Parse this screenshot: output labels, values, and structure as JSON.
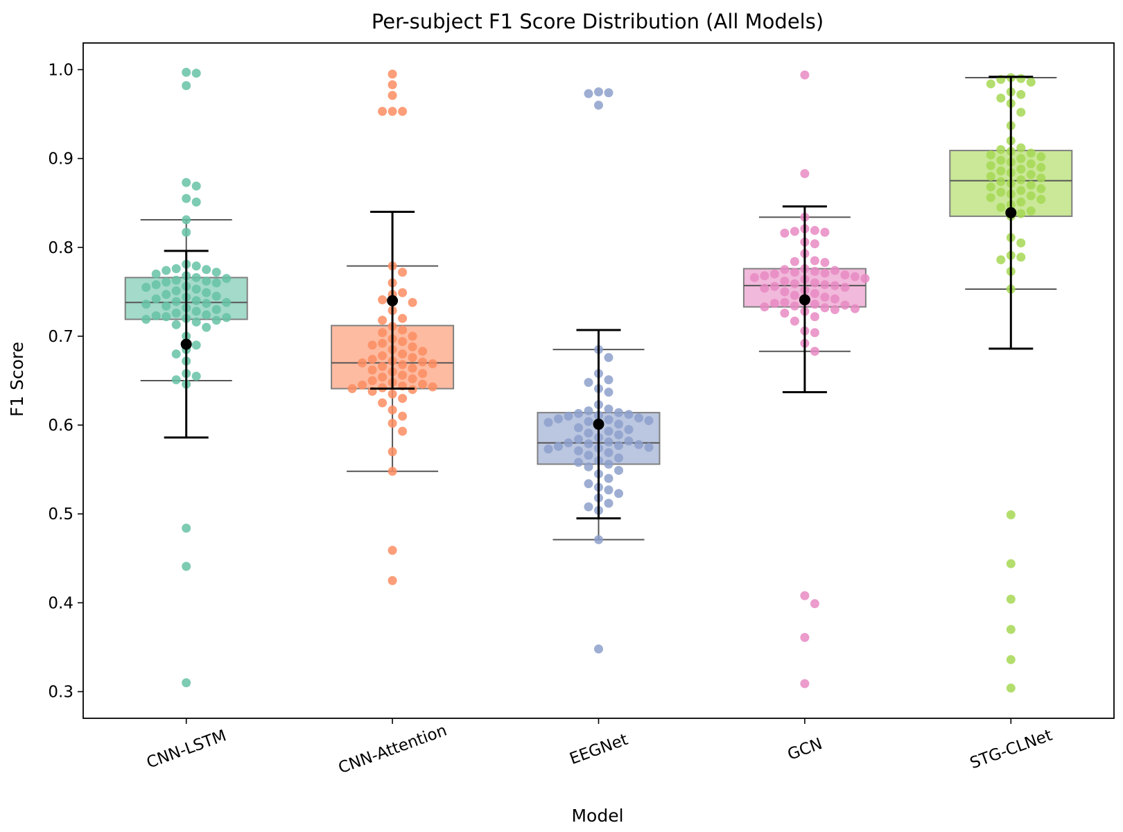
{
  "chart_data": {
    "type": "box+swarm",
    "title": "Per-subject F1 Score Distribution (All Models)",
    "xlabel": "Model",
    "ylabel": "F1 Score",
    "ylim": [
      0.27,
      1.03
    ],
    "yticks": [
      "0.3",
      "0.4",
      "0.5",
      "0.6",
      "0.7",
      "0.8",
      "0.9",
      "1.0"
    ],
    "categories": [
      "CNN-LSTM",
      "CNN-Attention",
      "EEGNet",
      "GCN",
      "STG-CLNet"
    ],
    "series": [
      {
        "name": "CNN-LSTM",
        "color": "#66c2a5",
        "box": {
          "q1": 0.719,
          "median": 0.738,
          "q3": 0.766,
          "whisker_low": 0.65,
          "whisker_high": 0.831
        },
        "mean": 0.691,
        "error_low": 0.586,
        "error_high": 0.796,
        "outliers": [
          0.997,
          0.996,
          0.982,
          0.484,
          0.441,
          0.31
        ],
        "points": [
          0.873,
          0.869,
          0.855,
          0.851,
          0.831,
          0.817,
          0.781,
          0.779,
          0.776,
          0.775,
          0.774,
          0.772,
          0.77,
          0.768,
          0.766,
          0.765,
          0.763,
          0.762,
          0.761,
          0.76,
          0.758,
          0.756,
          0.755,
          0.753,
          0.751,
          0.749,
          0.747,
          0.745,
          0.744,
          0.742,
          0.74,
          0.739,
          0.738,
          0.737,
          0.736,
          0.734,
          0.732,
          0.73,
          0.728,
          0.726,
          0.724,
          0.723,
          0.722,
          0.721,
          0.72,
          0.719,
          0.718,
          0.716,
          0.713,
          0.71,
          0.7,
          0.69,
          0.685,
          0.68,
          0.672,
          0.658,
          0.655,
          0.651,
          0.646
        ]
      },
      {
        "name": "CNN-Attention",
        "color": "#fc8d62",
        "box": {
          "q1": 0.641,
          "median": 0.67,
          "q3": 0.712,
          "whisker_low": 0.548,
          "whisker_high": 0.779
        },
        "mean": 0.74,
        "error_low": 0.641,
        "error_high": 0.84,
        "outliers": [
          0.995,
          0.983,
          0.971,
          0.953,
          0.953,
          0.953,
          0.459,
          0.425
        ],
        "points": [
          0.779,
          0.772,
          0.76,
          0.749,
          0.747,
          0.741,
          0.738,
          0.729,
          0.72,
          0.718,
          0.711,
          0.707,
          0.704,
          0.7,
          0.697,
          0.694,
          0.692,
          0.69,
          0.688,
          0.685,
          0.683,
          0.68,
          0.678,
          0.676,
          0.674,
          0.672,
          0.671,
          0.67,
          0.669,
          0.668,
          0.666,
          0.664,
          0.662,
          0.66,
          0.658,
          0.656,
          0.654,
          0.652,
          0.65,
          0.648,
          0.646,
          0.645,
          0.644,
          0.643,
          0.642,
          0.641,
          0.64,
          0.638,
          0.635,
          0.63,
          0.625,
          0.617,
          0.61,
          0.602,
          0.593,
          0.57,
          0.548
        ]
      },
      {
        "name": "EEGNet",
        "color": "#8da0cb",
        "box": {
          "q1": 0.556,
          "median": 0.58,
          "q3": 0.614,
          "whisker_low": 0.471,
          "whisker_high": 0.685
        },
        "mean": 0.601,
        "error_low": 0.495,
        "error_high": 0.707,
        "outliers": [
          0.975,
          0.974,
          0.973,
          0.96,
          0.348
        ],
        "points": [
          0.685,
          0.676,
          0.658,
          0.651,
          0.648,
          0.641,
          0.637,
          0.623,
          0.618,
          0.616,
          0.614,
          0.613,
          0.612,
          0.611,
          0.61,
          0.608,
          0.607,
          0.606,
          0.605,
          0.604,
          0.603,
          0.601,
          0.599,
          0.597,
          0.595,
          0.593,
          0.591,
          0.589,
          0.586,
          0.584,
          0.582,
          0.581,
          0.58,
          0.579,
          0.578,
          0.577,
          0.576,
          0.575,
          0.574,
          0.573,
          0.571,
          0.569,
          0.566,
          0.563,
          0.56,
          0.558,
          0.556,
          0.553,
          0.549,
          0.545,
          0.54,
          0.534,
          0.53,
          0.527,
          0.523,
          0.518,
          0.512,
          0.508,
          0.504,
          0.471
        ]
      },
      {
        "name": "GCN",
        "color": "#e78ac3",
        "box": {
          "q1": 0.733,
          "median": 0.757,
          "q3": 0.776,
          "whisker_low": 0.683,
          "whisker_high": 0.834
        },
        "mean": 0.741,
        "error_low": 0.637,
        "error_high": 0.846,
        "outliers": [
          0.994,
          0.883,
          0.408,
          0.399,
          0.361,
          0.309
        ],
        "points": [
          0.834,
          0.821,
          0.819,
          0.818,
          0.817,
          0.816,
          0.806,
          0.804,
          0.793,
          0.785,
          0.784,
          0.783,
          0.776,
          0.775,
          0.774,
          0.773,
          0.772,
          0.771,
          0.77,
          0.769,
          0.768,
          0.767,
          0.766,
          0.765,
          0.764,
          0.762,
          0.76,
          0.759,
          0.758,
          0.757,
          0.756,
          0.755,
          0.754,
          0.752,
          0.75,
          0.748,
          0.746,
          0.744,
          0.742,
          0.74,
          0.738,
          0.737,
          0.736,
          0.735,
          0.734,
          0.733,
          0.732,
          0.731,
          0.73,
          0.728,
          0.726,
          0.722,
          0.717,
          0.706,
          0.704,
          0.692,
          0.683
        ]
      },
      {
        "name": "STG-CLNet",
        "color": "#a6d854",
        "box": {
          "q1": 0.835,
          "median": 0.875,
          "q3": 0.909,
          "whisker_low": 0.753,
          "whisker_high": 0.991
        },
        "mean": 0.839,
        "error_low": 0.686,
        "error_high": 0.992,
        "outliers": [
          0.499,
          0.444,
          0.404,
          0.37,
          0.336,
          0.304
        ],
        "points": [
          0.991,
          0.99,
          0.989,
          0.986,
          0.984,
          0.975,
          0.972,
          0.968,
          0.962,
          0.952,
          0.937,
          0.92,
          0.912,
          0.91,
          0.908,
          0.906,
          0.904,
          0.902,
          0.9,
          0.898,
          0.896,
          0.894,
          0.892,
          0.89,
          0.888,
          0.886,
          0.884,
          0.882,
          0.88,
          0.878,
          0.876,
          0.874,
          0.872,
          0.87,
          0.868,
          0.866,
          0.864,
          0.862,
          0.86,
          0.858,
          0.856,
          0.854,
          0.851,
          0.848,
          0.845,
          0.841,
          0.838,
          0.835,
          0.811,
          0.805,
          0.791,
          0.789,
          0.786,
          0.773,
          0.753
        ]
      }
    ]
  }
}
